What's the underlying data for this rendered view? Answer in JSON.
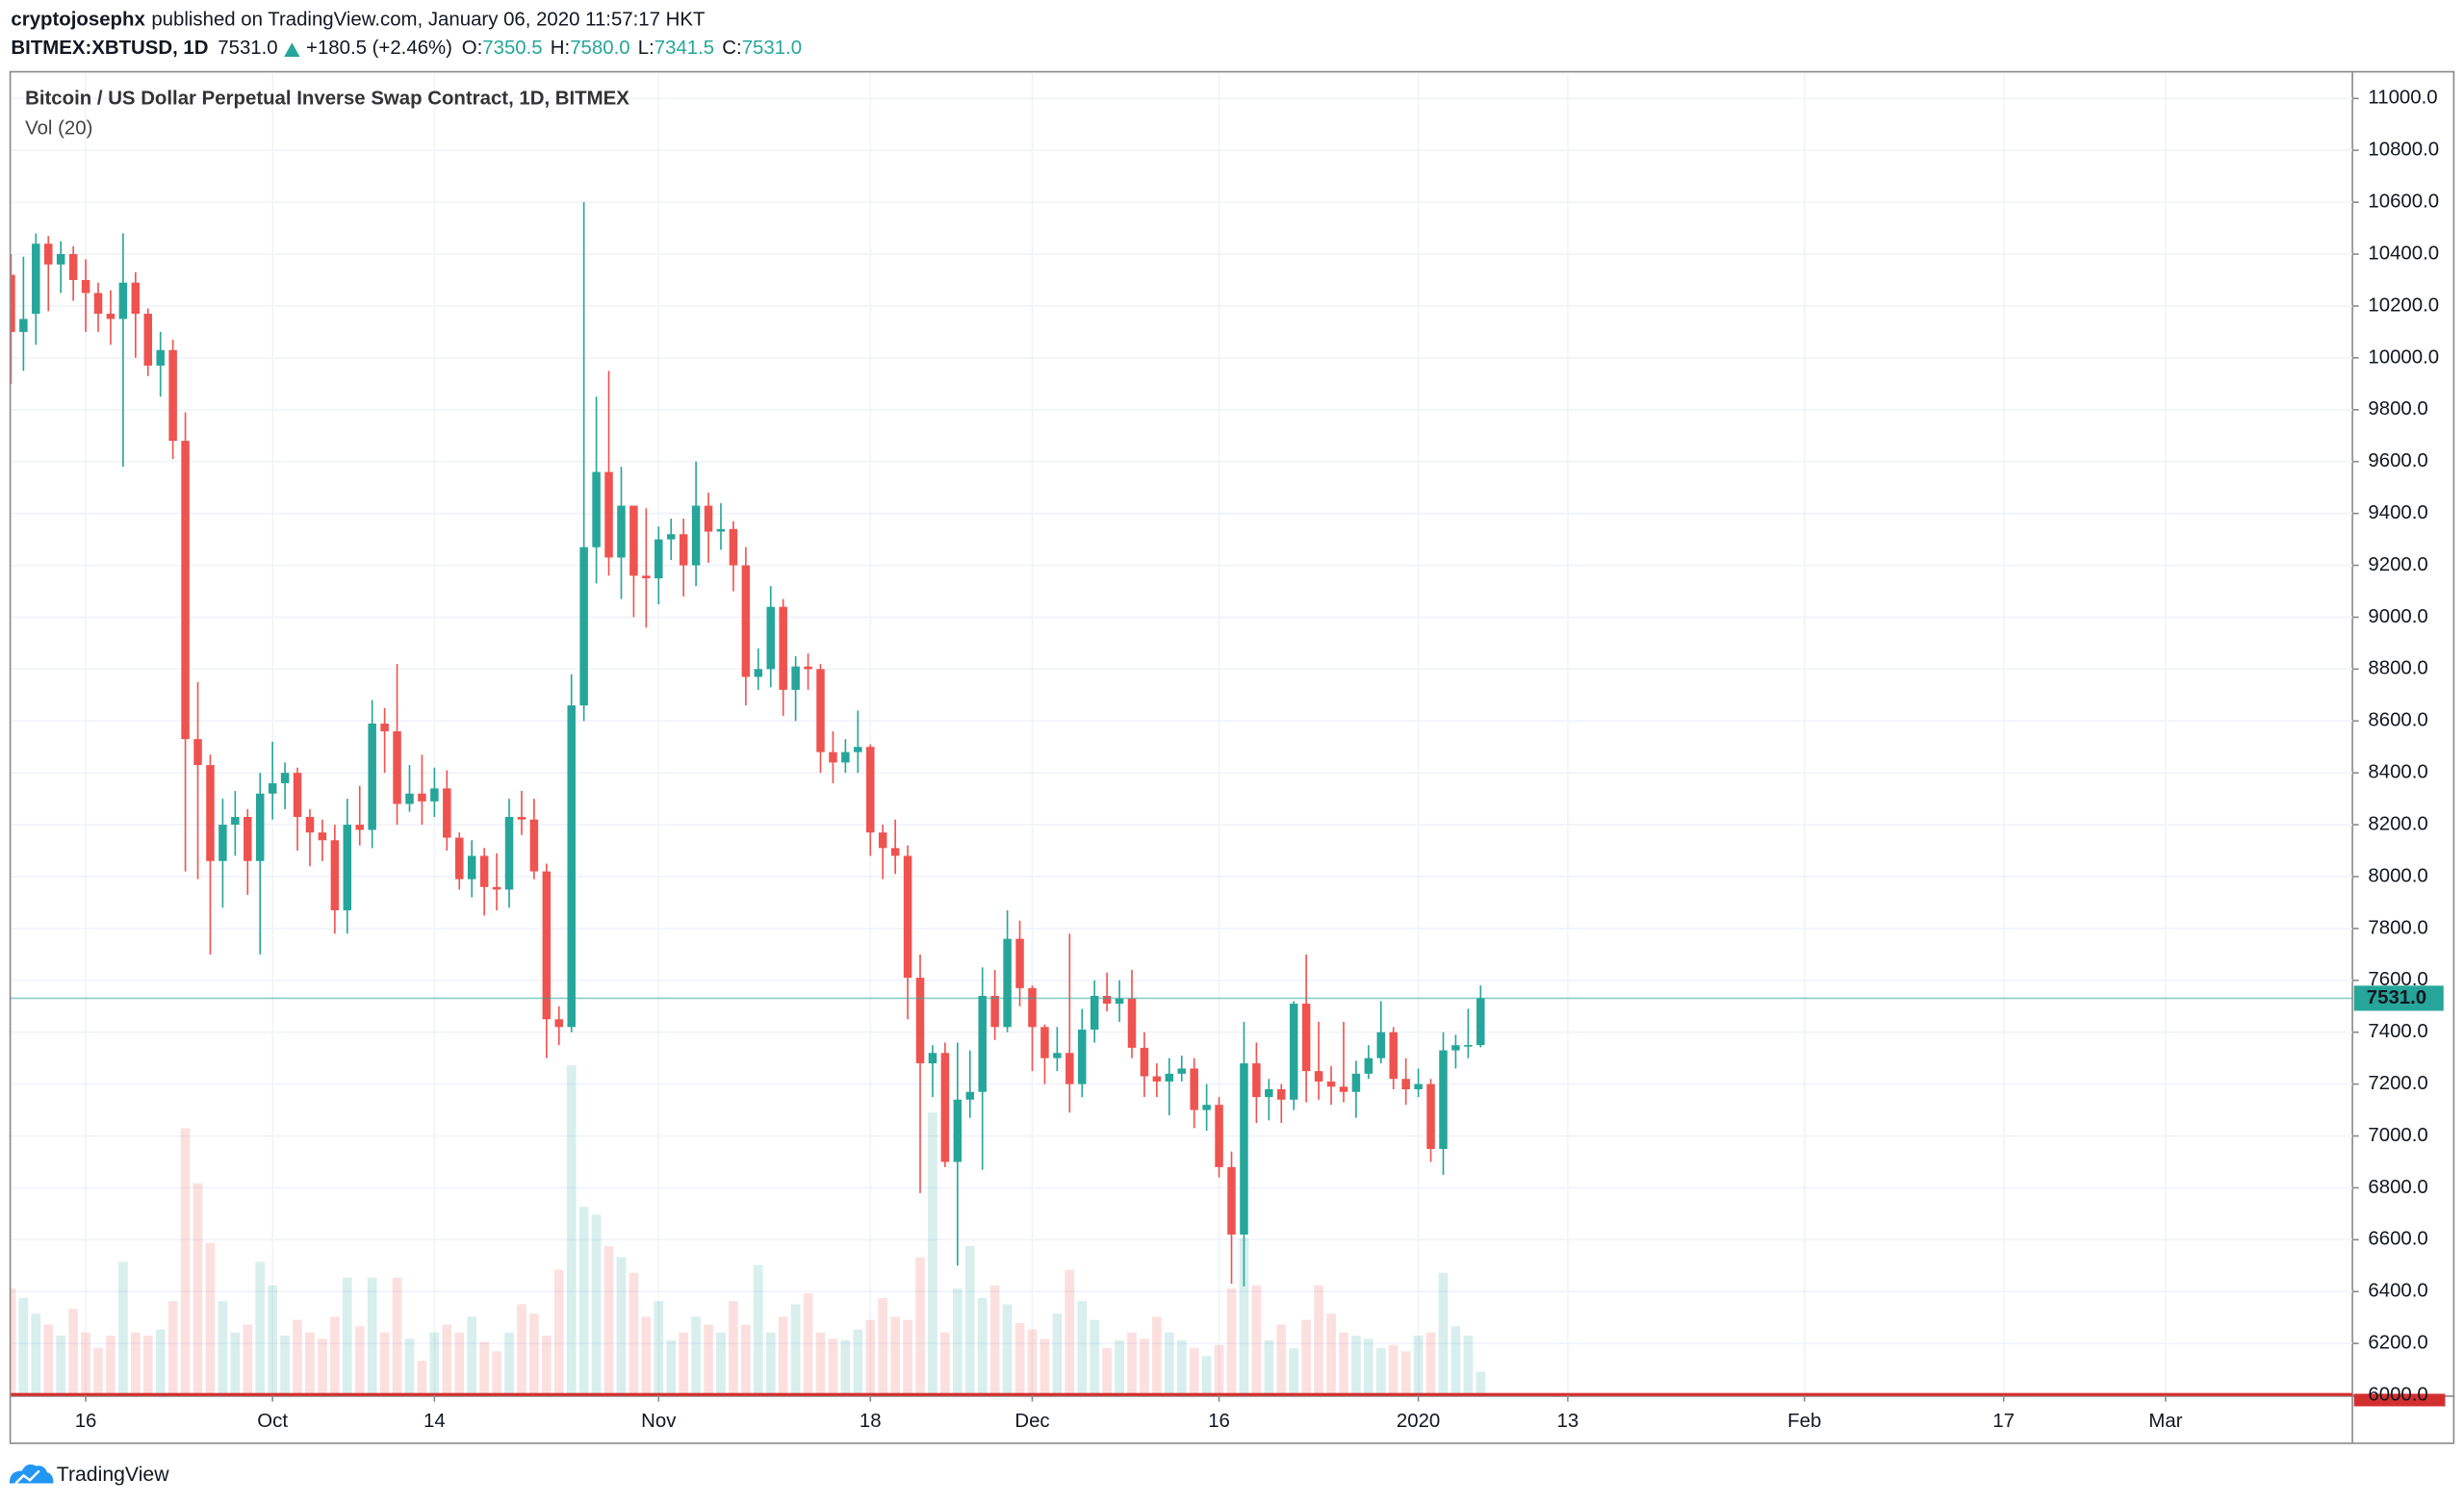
{
  "header": {
    "author": "cryptojosephx",
    "published": "published on TradingView.com, January 06, 2020 11:57:17 HKT",
    "symbol": "BITMEX:XBTUSD, 1D",
    "last": "7531.0",
    "change": "+180.5 (+2.46%)",
    "ohlc": [
      {
        "key": "O:",
        "value": "7350.5"
      },
      {
        "key": "H:",
        "value": "7580.0"
      },
      {
        "key": "L:",
        "value": "7341.5"
      },
      {
        "key": "C:",
        "value": "7531.0"
      }
    ]
  },
  "chart_data": {
    "type": "candlestick",
    "title": "Bitcoin / US Dollar Perpetual Inverse Swap Contract, 1D, BITMEX",
    "volume_label": "Vol (20)",
    "up_color": "#26a69a",
    "down_color": "#ef5350",
    "x": [
      "2019-09-10",
      "2019-09-11",
      "2019-09-12",
      "2019-09-13",
      "2019-09-14",
      "2019-09-15",
      "2019-09-16",
      "2019-09-17",
      "2019-09-18",
      "2019-09-19",
      "2019-09-20",
      "2019-09-21",
      "2019-09-22",
      "2019-09-23",
      "2019-09-24",
      "2019-09-25",
      "2019-09-26",
      "2019-09-27",
      "2019-09-28",
      "2019-09-29",
      "2019-09-30",
      "2019-10-01",
      "2019-10-02",
      "2019-10-03",
      "2019-10-04",
      "2019-10-05",
      "2019-10-06",
      "2019-10-07",
      "2019-10-08",
      "2019-10-09",
      "2019-10-10",
      "2019-10-11",
      "2019-10-12",
      "2019-10-13",
      "2019-10-14",
      "2019-10-15",
      "2019-10-16",
      "2019-10-17",
      "2019-10-18",
      "2019-10-19",
      "2019-10-20",
      "2019-10-21",
      "2019-10-22",
      "2019-10-23",
      "2019-10-24",
      "2019-10-25",
      "2019-10-26",
      "2019-10-27",
      "2019-10-28",
      "2019-10-29",
      "2019-10-30",
      "2019-10-31",
      "2019-11-01",
      "2019-11-02",
      "2019-11-03",
      "2019-11-04",
      "2019-11-05",
      "2019-11-06",
      "2019-11-07",
      "2019-11-08",
      "2019-11-09",
      "2019-11-10",
      "2019-11-11",
      "2019-11-12",
      "2019-11-13",
      "2019-11-14",
      "2019-11-15",
      "2019-11-16",
      "2019-11-17",
      "2019-11-18",
      "2019-11-19",
      "2019-11-20",
      "2019-11-21",
      "2019-11-22",
      "2019-11-23",
      "2019-11-24",
      "2019-11-25",
      "2019-11-26",
      "2019-11-27",
      "2019-11-28",
      "2019-11-29",
      "2019-11-30",
      "2019-12-01",
      "2019-12-02",
      "2019-12-03",
      "2019-12-04",
      "2019-12-05",
      "2019-12-06",
      "2019-12-07",
      "2019-12-08",
      "2019-12-09",
      "2019-12-10",
      "2019-12-11",
      "2019-12-12",
      "2019-12-13",
      "2019-12-14",
      "2019-12-15",
      "2019-12-16",
      "2019-12-17",
      "2019-12-18",
      "2019-12-19",
      "2019-12-20",
      "2019-12-21",
      "2019-12-22",
      "2019-12-23",
      "2019-12-24",
      "2019-12-25",
      "2019-12-26",
      "2019-12-27",
      "2019-12-28",
      "2019-12-29",
      "2019-12-30",
      "2019-12-31",
      "2020-01-01",
      "2020-01-02",
      "2020-01-03",
      "2020-01-04",
      "2020-01-05",
      "2020-01-06"
    ],
    "open": [
      10320,
      10100,
      10170,
      10440,
      10360,
      10400,
      10300,
      10250,
      10170,
      10150,
      10290,
      10170,
      9970,
      10030,
      9680,
      8530,
      8430,
      8060,
      8200,
      8230,
      8060,
      8320,
      8360,
      8400,
      8230,
      8170,
      8140,
      7870,
      8200,
      8180,
      8590,
      8560,
      8280,
      8320,
      8290,
      8340,
      8150,
      7990,
      8080,
      7960,
      7950,
      8230,
      8220,
      8020,
      7450,
      7420,
      8660,
      9270,
      9560,
      9230,
      9430,
      9160,
      9150,
      9300,
      9320,
      9200,
      9430,
      9330,
      9340,
      9200,
      8770,
      8800,
      9040,
      8720,
      8810,
      8800,
      8480,
      8440,
      8480,
      8500,
      8170,
      8110,
      8080,
      7610,
      7280,
      7320,
      6900,
      7140,
      7170,
      7540,
      7420,
      7760,
      7570,
      7420,
      7300,
      7320,
      7200,
      7410,
      7540,
      7510,
      7530,
      7340,
      7230,
      7210,
      7240,
      7260,
      7100,
      7120,
      6880,
      6620,
      7280,
      7150,
      7180,
      7140,
      7510,
      7250,
      7210,
      7190,
      7170,
      7240,
      7300,
      7400,
      7220,
      7180,
      7200,
      6950,
      7330,
      7350,
      7350.5
    ],
    "high": [
      10400,
      10390,
      10480,
      10470,
      10450,
      10430,
      10380,
      10290,
      10260,
      10480,
      10330,
      10190,
      10100,
      10070,
      9790,
      8750,
      8470,
      8300,
      8330,
      8260,
      8400,
      8520,
      8440,
      8420,
      8260,
      8220,
      8200,
      8300,
      8350,
      8680,
      8650,
      8820,
      8430,
      8470,
      8420,
      8410,
      8170,
      8140,
      8110,
      8090,
      8300,
      8330,
      8300,
      8050,
      7500,
      8780,
      10600,
      9850,
      9950,
      9580,
      9430,
      9420,
      9350,
      9380,
      9380,
      9600,
      9480,
      9440,
      9370,
      9270,
      8880,
      9120,
      9070,
      8850,
      8860,
      8820,
      8560,
      8530,
      8640,
      8510,
      8200,
      8220,
      8120,
      7700,
      7350,
      7360,
      7360,
      7330,
      7650,
      7640,
      7870,
      7830,
      7580,
      7430,
      7420,
      7780,
      7490,
      7600,
      7630,
      7600,
      7640,
      7400,
      7280,
      7300,
      7310,
      7300,
      7200,
      7150,
      6940,
      7440,
      7360,
      7220,
      7200,
      7520,
      7700,
      7440,
      7270,
      7440,
      7290,
      7350,
      7520,
      7420,
      7300,
      7260,
      7220,
      7400,
      7390,
      7490,
      7580
    ],
    "low": [
      9900,
      9950,
      10050,
      10180,
      10250,
      10220,
      10100,
      10100,
      10050,
      9580,
      10000,
      9930,
      9850,
      9610,
      8020,
      7990,
      7700,
      7880,
      8080,
      7930,
      7700,
      8220,
      8260,
      8100,
      8040,
      8060,
      7780,
      7780,
      8120,
      8110,
      8400,
      8200,
      8250,
      8200,
      8230,
      8100,
      7950,
      7920,
      7850,
      7870,
      7880,
      8160,
      7990,
      7300,
      7350,
      7400,
      8600,
      9130,
      9160,
      9070,
      9000,
      8960,
      9050,
      9220,
      9080,
      9120,
      9210,
      9260,
      9100,
      8660,
      8720,
      8730,
      8620,
      8600,
      8720,
      8400,
      8360,
      8400,
      8400,
      8080,
      7990,
      8010,
      7450,
      6780,
      7150,
      6880,
      6500,
      7070,
      6870,
      7370,
      7400,
      7500,
      7250,
      7200,
      7250,
      7090,
      7150,
      7360,
      7480,
      7440,
      7300,
      7150,
      7150,
      7080,
      7210,
      7030,
      7020,
      6840,
      6430,
      6420,
      7050,
      7060,
      7050,
      7100,
      7130,
      7140,
      7120,
      7130,
      7070,
      7220,
      7280,
      7180,
      7120,
      7150,
      6900,
      6850,
      7260,
      7300,
      7341.5
    ],
    "close": [
      10100,
      10150,
      10440,
      10360,
      10400,
      10300,
      10250,
      10170,
      10150,
      10290,
      10170,
      9970,
      10030,
      9680,
      8530,
      8430,
      8060,
      8200,
      8230,
      8060,
      8320,
      8360,
      8400,
      8230,
      8170,
      8140,
      7870,
      8200,
      8180,
      8590,
      8560,
      8280,
      8320,
      8290,
      8340,
      8150,
      7990,
      8080,
      7960,
      7950,
      8230,
      8220,
      8020,
      7450,
      7420,
      8660,
      9270,
      9560,
      9230,
      9430,
      9160,
      9150,
      9300,
      9320,
      9200,
      9430,
      9330,
      9340,
      9200,
      8770,
      8800,
      9040,
      8720,
      8810,
      8800,
      8480,
      8440,
      8480,
      8500,
      8170,
      8110,
      8080,
      7610,
      7280,
      7320,
      6900,
      7140,
      7170,
      7540,
      7420,
      7760,
      7570,
      7420,
      7300,
      7320,
      7200,
      7410,
      7540,
      7510,
      7530,
      7340,
      7230,
      7210,
      7240,
      7260,
      7100,
      7120,
      6880,
      6620,
      7280,
      7150,
      7180,
      7140,
      7510,
      7250,
      7210,
      7190,
      7170,
      7240,
      7300,
      7400,
      7220,
      7180,
      7200,
      6950,
      7330,
      7350,
      7350.5,
      7531
    ],
    "volume": [
      68,
      62,
      52,
      45,
      38,
      55,
      40,
      30,
      38,
      85,
      40,
      38,
      42,
      60,
      170,
      135,
      97,
      60,
      40,
      45,
      85,
      70,
      38,
      48,
      40,
      36,
      50,
      75,
      44,
      75,
      40,
      75,
      36,
      22,
      40,
      45,
      40,
      50,
      34,
      28,
      40,
      58,
      52,
      38,
      80,
      210,
      120,
      115,
      95,
      88,
      78,
      50,
      60,
      35,
      40,
      50,
      45,
      40,
      60,
      45,
      83,
      40,
      50,
      58,
      65,
      40,
      36,
      35,
      42,
      48,
      62,
      50,
      48,
      88,
      180,
      40,
      68,
      95,
      62,
      70,
      58,
      46,
      42,
      36,
      52,
      80,
      60,
      48,
      30,
      35,
      40,
      36,
      50,
      40,
      35,
      30,
      25,
      32,
      68,
      100,
      70,
      35,
      45,
      30,
      48,
      70,
      52,
      40,
      38,
      36,
      30,
      32,
      28,
      38,
      40,
      78,
      44,
      38,
      15
    ],
    "xlim": [
      "2019-09-10",
      "2020-03-16"
    ],
    "xticks": [
      {
        "value": "2019-09-16",
        "label": "16"
      },
      {
        "value": "2019-10-01",
        "label": "Oct"
      },
      {
        "value": "2019-10-14",
        "label": "14"
      },
      {
        "value": "2019-11-01",
        "label": "Nov"
      },
      {
        "value": "2019-11-18",
        "label": "18"
      },
      {
        "value": "2019-12-01",
        "label": "Dec"
      },
      {
        "value": "2019-12-16",
        "label": "16"
      },
      {
        "value": "2020-01-01",
        "label": "2020"
      },
      {
        "value": "2020-01-13",
        "label": "13"
      },
      {
        "value": "2020-02-01",
        "label": "Feb"
      },
      {
        "value": "2020-02-17",
        "label": "17"
      },
      {
        "value": "2020-03-01",
        "label": "Mar"
      }
    ],
    "ylim": [
      6000,
      11100
    ],
    "yticks": [
      {
        "value": 6000,
        "label": "6000.0"
      },
      {
        "value": 6200,
        "label": "6200.0"
      },
      {
        "value": 6400,
        "label": "6400.0"
      },
      {
        "value": 6600,
        "label": "6600.0"
      },
      {
        "value": 6800,
        "label": "6800.0"
      },
      {
        "value": 7000,
        "label": "7000.0"
      },
      {
        "value": 7200,
        "label": "7200.0"
      },
      {
        "value": 7400,
        "label": "7400.0"
      },
      {
        "value": 7600,
        "label": "7600.0"
      },
      {
        "value": 7800,
        "label": "7800.0"
      },
      {
        "value": 8000,
        "label": "8000.0"
      },
      {
        "value": 8200,
        "label": "8200.0"
      },
      {
        "value": 8400,
        "label": "8400.0"
      },
      {
        "value": 8600,
        "label": "8600.0"
      },
      {
        "value": 8800,
        "label": "8800.0"
      },
      {
        "value": 9000,
        "label": "9000.0"
      },
      {
        "value": 9200,
        "label": "9200.0"
      },
      {
        "value": 9400,
        "label": "9400.0"
      },
      {
        "value": 9600,
        "label": "9600.0"
      },
      {
        "value": 9800,
        "label": "9800.0"
      },
      {
        "value": 10000,
        "label": "10000.0"
      },
      {
        "value": 10200,
        "label": "10200.0"
      },
      {
        "value": 10400,
        "label": "10400.0"
      },
      {
        "value": 10600,
        "label": "10600.0"
      },
      {
        "value": 10800,
        "label": "10800.0"
      },
      {
        "value": 11000,
        "label": "11000.0"
      }
    ],
    "grid": true,
    "last_price": {
      "value": 7531,
      "label": "7531.0"
    }
  },
  "footer": {
    "brand": "TradingView"
  }
}
